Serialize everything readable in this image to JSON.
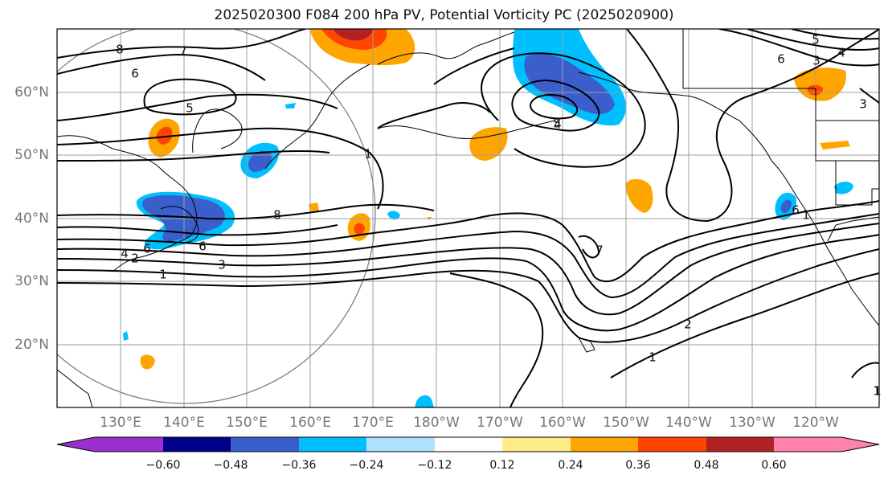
{
  "title": "2025020300 F084 200 hPa PV, Potential Vorticity PC (2025020900)",
  "lat_labels": [
    "60°N",
    "50°N",
    "40°N",
    "30°N",
    "20°N"
  ],
  "lon_labels": [
    "130°E",
    "140°E",
    "150°E",
    "160°E",
    "170°E",
    "180°W",
    "170°W",
    "160°W",
    "150°W",
    "140°W",
    "130°W",
    "120°W"
  ],
  "colorbar": {
    "colors": [
      "#9b30d0",
      "#00008b",
      "#3a5fcd",
      "#00bfff",
      "#b0e2ff",
      "#ffffff",
      "#ffec8b",
      "#ffa500",
      "#ff4500",
      "#b22222",
      "#ff82ab"
    ],
    "tick_labels": [
      "−0.60",
      "−0.48",
      "−0.36",
      "−0.24",
      "−0.12",
      "0.12",
      "0.24",
      "0.36",
      "0.48",
      "0.60"
    ]
  },
  "contour_labels": [
    "8",
    "7",
    "6",
    "5",
    "4",
    "3",
    "2",
    "1",
    "8",
    "6",
    "5",
    "4",
    "3",
    "1",
    "7",
    "1",
    "2",
    "1",
    "1",
    "6",
    "5",
    "4",
    "3",
    "6",
    "1",
    "6"
  ],
  "palette": {
    "purple": "#9b30d0",
    "navy": "#00008b",
    "royal": "#3a5fcd",
    "sky": "#00bfff",
    "pale": "#b0e2ff",
    "yellow": "#ffec8b",
    "orange": "#ffa500",
    "redorange": "#ff4500",
    "firebrick": "#b22222",
    "pink": "#ff82ab",
    "grid": "#9e9e9e",
    "contour": "#000000",
    "circle": "#808080"
  }
}
